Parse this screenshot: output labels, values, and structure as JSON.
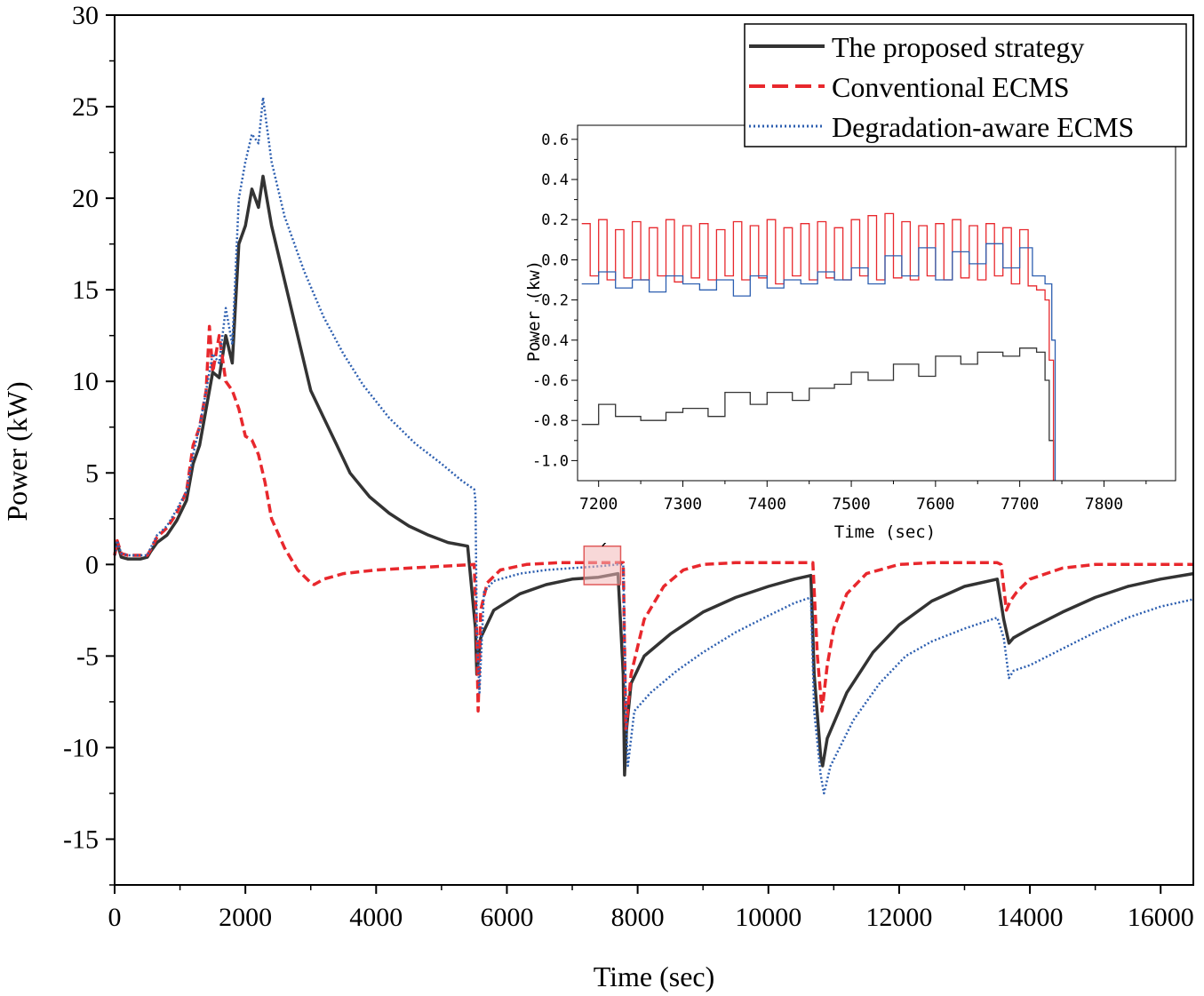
{
  "chart_data": [
    {
      "id": "main",
      "type": "line",
      "title": "",
      "xlabel": "Time (sec)",
      "ylabel": "Power (kW)",
      "xlim": [
        0,
        16500
      ],
      "ylim": [
        -17.5,
        30
      ],
      "xticks": [
        0,
        2000,
        4000,
        6000,
        8000,
        10000,
        12000,
        14000,
        16000
      ],
      "xtick_labels": [
        "0",
        "2000",
        "4000",
        "6000",
        "8000",
        "10000",
        "12000",
        "14000",
        "16000"
      ],
      "yticks": [
        -15,
        -10,
        -5,
        0,
        5,
        10,
        15,
        20,
        25,
        30
      ],
      "ytick_labels": [
        "-15",
        "-10",
        "-5",
        "0",
        "5",
        "10",
        "15",
        "20",
        "25",
        "30"
      ],
      "legend_position": "top-right",
      "series": [
        {
          "name": "The proposed strategy",
          "color": "#333333",
          "style": "solid",
          "x": [
            0,
            40,
            100,
            200,
            300,
            400,
            500,
            550,
            650,
            800,
            950,
            1100,
            1200,
            1300,
            1400,
            1500,
            1600,
            1700,
            1800,
            1900,
            2000,
            2100,
            2200,
            2270,
            2400,
            2600,
            2800,
            3000,
            3200,
            3400,
            3600,
            3900,
            4200,
            4500,
            4800,
            5100,
            5400,
            5520,
            5540,
            5600,
            5800,
            6200,
            6600,
            7000,
            7400,
            7700,
            7780,
            7800,
            7830,
            7900,
            8100,
            8500,
            9000,
            9500,
            10000,
            10400,
            10650,
            10700,
            10800,
            10830,
            10900,
            11200,
            11600,
            12000,
            12500,
            13000,
            13500,
            13600,
            13680,
            13750,
            14000,
            14500,
            15000,
            15500,
            16000,
            16500
          ],
          "y": [
            0.5,
            1.2,
            0.4,
            0.3,
            0.3,
            0.3,
            0.4,
            0.7,
            1.2,
            1.6,
            2.4,
            3.5,
            5.5,
            6.5,
            8.5,
            10.5,
            10.2,
            12.5,
            11.0,
            17.5,
            18.5,
            20.5,
            19.5,
            21.2,
            18.5,
            15.5,
            12.5,
            9.5,
            8.0,
            6.5,
            5.0,
            3.7,
            2.8,
            2.1,
            1.6,
            1.2,
            1.0,
            -3.5,
            -6.0,
            -4.0,
            -2.5,
            -1.6,
            -1.1,
            -0.8,
            -0.7,
            -0.5,
            -6.0,
            -11.5,
            -9.0,
            -6.5,
            -5.0,
            -3.8,
            -2.6,
            -1.8,
            -1.2,
            -0.8,
            -0.6,
            -6.0,
            -10.5,
            -11.0,
            -9.5,
            -7.0,
            -4.8,
            -3.3,
            -2.0,
            -1.2,
            -0.8,
            -3.0,
            -4.3,
            -4.0,
            -3.5,
            -2.6,
            -1.8,
            -1.2,
            -0.8,
            -0.5
          ]
        },
        {
          "name": "Conventional ECMS",
          "color": "#e8282d",
          "style": "dashed",
          "x": [
            0,
            40,
            100,
            200,
            300,
            400,
            500,
            550,
            650,
            800,
            950,
            1100,
            1200,
            1300,
            1400,
            1450,
            1500,
            1600,
            1700,
            1800,
            1900,
            2000,
            2100,
            2200,
            2300,
            2400,
            2600,
            2800,
            3000,
            3050,
            3200,
            3500,
            4000,
            4500,
            5000,
            5500,
            5540,
            5560,
            5600,
            5700,
            5900,
            6300,
            6800,
            7300,
            7700,
            7780,
            7820,
            7900,
            8100,
            8400,
            8700,
            9000,
            9500,
            10000,
            10500,
            10680,
            10750,
            10820,
            10900,
            11000,
            11200,
            11500,
            12000,
            12500,
            13000,
            13500,
            13560,
            13640,
            13700,
            13800,
            14000,
            14500,
            15000,
            15500,
            16000,
            16500
          ],
          "y": [
            0.5,
            1.3,
            0.6,
            0.5,
            0.5,
            0.5,
            0.5,
            0.8,
            1.5,
            2.0,
            2.8,
            4.0,
            6.5,
            7.5,
            9.5,
            13.0,
            10.5,
            12.5,
            10.0,
            9.5,
            8.5,
            7.0,
            6.8,
            6.0,
            4.5,
            2.5,
            0.9,
            -0.3,
            -1.0,
            -1.1,
            -0.8,
            -0.5,
            -0.3,
            -0.2,
            -0.1,
            0.0,
            -4.0,
            -8.0,
            -2.5,
            -1.0,
            -0.3,
            0.0,
            0.1,
            0.1,
            0.1,
            0.1,
            -9.0,
            -6.0,
            -3.0,
            -1.2,
            -0.3,
            0.0,
            0.1,
            0.1,
            0.1,
            0.1,
            -5.0,
            -8.0,
            -5.5,
            -3.5,
            -1.6,
            -0.5,
            0.0,
            0.1,
            0.1,
            0.1,
            0.0,
            -2.5,
            -2.0,
            -1.5,
            -0.8,
            -0.2,
            0.0,
            0.0,
            0.0,
            0.0
          ]
        },
        {
          "name": "Degradation-aware ECMS",
          "color": "#2d5fb0",
          "style": "dotted",
          "x": [
            0,
            40,
            100,
            200,
            300,
            400,
            500,
            550,
            650,
            800,
            950,
            1100,
            1200,
            1300,
            1400,
            1500,
            1600,
            1700,
            1800,
            1900,
            2000,
            2100,
            2200,
            2270,
            2400,
            2600,
            2900,
            3200,
            3500,
            3800,
            4200,
            4600,
            5000,
            5300,
            5500,
            5520,
            5540,
            5580,
            5650,
            5800,
            6200,
            6600,
            7000,
            7400,
            7700,
            7780,
            7820,
            7850,
            7950,
            8200,
            8600,
            9000,
            9500,
            10000,
            10400,
            10650,
            10700,
            10800,
            10850,
            10950,
            11300,
            11700,
            12100,
            12500,
            13000,
            13500,
            13600,
            13680,
            13750,
            14000,
            14500,
            15000,
            15500,
            16000,
            16500
          ],
          "y": [
            0.5,
            1.3,
            0.6,
            0.5,
            0.5,
            0.5,
            0.5,
            0.9,
            1.6,
            2.1,
            3.0,
            4.0,
            6.0,
            7.5,
            9.5,
            11.5,
            11.0,
            14.0,
            12.0,
            20.0,
            22.0,
            23.5,
            23.0,
            25.5,
            22.0,
            19.0,
            16.0,
            13.5,
            11.5,
            9.8,
            8.0,
            6.6,
            5.5,
            4.6,
            4.1,
            3.5,
            -3.5,
            -7.0,
            -1.5,
            -0.9,
            -0.5,
            -0.3,
            -0.2,
            -0.1,
            0.0,
            0.0,
            -8.0,
            -11.0,
            -8.0,
            -7.0,
            -5.8,
            -4.8,
            -3.7,
            -2.8,
            -2.1,
            -1.8,
            -8.0,
            -11.5,
            -12.5,
            -11.0,
            -8.5,
            -6.5,
            -5.0,
            -4.2,
            -3.5,
            -2.9,
            -4.0,
            -6.2,
            -5.8,
            -5.5,
            -4.6,
            -3.7,
            -2.9,
            -2.3,
            -1.9
          ]
        }
      ]
    },
    {
      "id": "inset",
      "type": "line",
      "title": "",
      "xlabel": "Time (sec)",
      "ylabel": "Power (kw)",
      "xlim": [
        7175,
        7885
      ],
      "ylim": [
        -1.1,
        0.67
      ],
      "xticks": [
        7200,
        7300,
        7400,
        7500,
        7600,
        7700,
        7800
      ],
      "xtick_labels": [
        "7200",
        "7300",
        "7400",
        "7500",
        "7600",
        "7700",
        "7800"
      ],
      "yticks": [
        -1.0,
        -0.8,
        -0.6,
        -0.4,
        -0.2,
        0.0,
        0.2,
        0.4,
        0.6
      ],
      "ytick_labels": [
        "-1.0",
        "-0.8",
        "-0.6",
        "-0.4",
        "-0.2",
        "0.0",
        "0.2",
        "0.4",
        "0.6"
      ],
      "series": [
        {
          "name": "The proposed strategy",
          "color": "#333333",
          "x": [
            7180,
            7200,
            7220,
            7250,
            7280,
            7300,
            7330,
            7350,
            7380,
            7400,
            7430,
            7450,
            7480,
            7500,
            7520,
            7550,
            7580,
            7600,
            7630,
            7650,
            7680,
            7700,
            7720,
            7730,
            7735,
            7740
          ],
          "y": [
            -0.82,
            -0.72,
            -0.78,
            -0.8,
            -0.76,
            -0.74,
            -0.78,
            -0.66,
            -0.72,
            -0.66,
            -0.7,
            -0.64,
            -0.62,
            -0.56,
            -0.6,
            -0.52,
            -0.58,
            -0.48,
            -0.52,
            -0.46,
            -0.48,
            -0.44,
            -0.46,
            -0.6,
            -0.9,
            -1.1
          ]
        },
        {
          "name": "Conventional ECMS",
          "color": "#e8282d",
          "x": [
            7180,
            7190,
            7200,
            7210,
            7220,
            7230,
            7240,
            7250,
            7260,
            7270,
            7280,
            7290,
            7300,
            7310,
            7320,
            7330,
            7340,
            7350,
            7360,
            7370,
            7380,
            7390,
            7400,
            7410,
            7420,
            7430,
            7440,
            7450,
            7460,
            7470,
            7480,
            7490,
            7500,
            7510,
            7520,
            7530,
            7540,
            7550,
            7560,
            7570,
            7580,
            7590,
            7600,
            7610,
            7620,
            7630,
            7640,
            7650,
            7660,
            7670,
            7680,
            7690,
            7700,
            7710,
            7720,
            7730,
            7735,
            7740
          ],
          "y": [
            0.18,
            -0.08,
            0.2,
            -0.1,
            0.15,
            -0.09,
            0.19,
            -0.1,
            0.16,
            -0.08,
            0.2,
            -0.11,
            0.17,
            -0.09,
            0.18,
            -0.1,
            0.15,
            -0.08,
            0.19,
            -0.1,
            0.17,
            -0.09,
            0.2,
            -0.12,
            0.16,
            -0.08,
            0.18,
            -0.1,
            0.19,
            -0.09,
            0.16,
            -0.1,
            0.2,
            -0.08,
            0.22,
            -0.1,
            0.23,
            -0.09,
            0.19,
            -0.1,
            0.17,
            -0.08,
            0.18,
            -0.1,
            0.2,
            -0.09,
            0.17,
            -0.1,
            0.18,
            -0.08,
            0.16,
            -0.12,
            0.15,
            -0.13,
            -0.15,
            -0.2,
            -0.5,
            -1.1
          ]
        },
        {
          "name": "Degradation-aware ECMS",
          "color": "#2d5fb0",
          "x": [
            7180,
            7200,
            7220,
            7240,
            7260,
            7280,
            7300,
            7320,
            7340,
            7360,
            7380,
            7400,
            7420,
            7440,
            7460,
            7480,
            7500,
            7520,
            7540,
            7560,
            7580,
            7600,
            7620,
            7640,
            7660,
            7680,
            7700,
            7715,
            7730,
            7738,
            7742
          ],
          "y": [
            -0.12,
            -0.06,
            -0.14,
            -0.1,
            -0.16,
            -0.08,
            -0.12,
            -0.15,
            -0.1,
            -0.18,
            -0.08,
            -0.14,
            -0.1,
            -0.12,
            -0.06,
            -0.1,
            -0.04,
            -0.12,
            0.02,
            -0.08,
            0.06,
            -0.1,
            0.04,
            -0.02,
            0.08,
            -0.04,
            0.06,
            -0.08,
            -0.12,
            -0.4,
            -1.1
          ]
        }
      ]
    }
  ]
}
